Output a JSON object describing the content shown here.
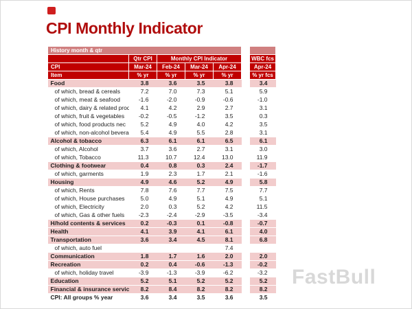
{
  "page": {
    "title": "CPI Monthly Indicator",
    "watermark": "FastBull"
  },
  "colors": {
    "title_red": "#b00d0d",
    "header_dark_red": "#c00000",
    "band_red": "#d08080",
    "category_row_pink": "#f2cccc",
    "watermark_gray": "#d8d8d8",
    "logo_red": "#cf1f1f"
  },
  "chart_data": {
    "type": "table",
    "title": "CPI Monthly Indicator",
    "band_header": "History month & qtr",
    "column_groups": [
      "Qtr CPI",
      "Monthly CPI Indicator",
      "WBC fcs"
    ],
    "row_label_header": {
      "top": "CPI",
      "bottom": "Item"
    },
    "months": [
      "Mar-24",
      "Feb-24",
      "Mar-24",
      "Apr-24"
    ],
    "fcs_month": "Apr-24",
    "units": [
      "% yr",
      "% yr",
      "% yr",
      "% yr"
    ],
    "fcs_unit": "% yr fcs",
    "rows": [
      {
        "label": "Food",
        "style": "category",
        "values": [
          "3.8",
          "3.6",
          "3.5",
          "3.8",
          "3.4"
        ]
      },
      {
        "label": "of which, bread & cereals",
        "style": "sub",
        "values": [
          "7.2",
          "7.0",
          "7.3",
          "5.1",
          "5.9"
        ]
      },
      {
        "label": "of which, meat & seafood",
        "style": "sub",
        "values": [
          "-1.6",
          "-2.0",
          "-0.9",
          "-0.6",
          "-1.0"
        ]
      },
      {
        "label": "of which, dairy & related products",
        "style": "sub",
        "values": [
          "4.1",
          "4.2",
          "2.9",
          "2.7",
          "3.1"
        ]
      },
      {
        "label": "of which, fruit & vegetables",
        "style": "sub",
        "values": [
          "-0.2",
          "-0.5",
          "-1.2",
          "3.5",
          "0.3"
        ]
      },
      {
        "label": "of which, food products nec",
        "style": "sub",
        "values": [
          "5.2",
          "4.9",
          "4.0",
          "4.2",
          "3.5"
        ]
      },
      {
        "label": "of which, non-alcohol beverages",
        "style": "sub",
        "values": [
          "5.4",
          "4.9",
          "5.5",
          "2.8",
          "3.1"
        ]
      },
      {
        "label": "Alcohol & tobacco",
        "style": "category",
        "values": [
          "6.3",
          "6.1",
          "6.1",
          "6.5",
          "6.1"
        ]
      },
      {
        "label": "of which, Alcohol",
        "style": "sub",
        "values": [
          "3.7",
          "3.6",
          "2.7",
          "3.1",
          "3.0"
        ]
      },
      {
        "label": "of which, Tobacco",
        "style": "sub",
        "values": [
          "11.3",
          "10.7",
          "12.4",
          "13.0",
          "11.9"
        ]
      },
      {
        "label": "Clothing & footwear",
        "style": "category",
        "values": [
          "0.4",
          "0.8",
          "0.3",
          "2.4",
          "-1.7"
        ]
      },
      {
        "label": "of which, garments",
        "style": "sub",
        "values": [
          "1.9",
          "2.3",
          "1.7",
          "2.1",
          "-1.6"
        ]
      },
      {
        "label": "Housing",
        "style": "category",
        "values": [
          "4.9",
          "4.6",
          "5.2",
          "4.9",
          "5.8"
        ]
      },
      {
        "label": "of which, Rents",
        "style": "sub",
        "values": [
          "7.8",
          "7.6",
          "7.7",
          "7.5",
          "7.7"
        ]
      },
      {
        "label": "of which, House purchases",
        "style": "sub",
        "values": [
          "5.0",
          "4.9",
          "5.1",
          "4.9",
          "5.1"
        ]
      },
      {
        "label": "of which, Electricity",
        "style": "sub",
        "values": [
          "2.0",
          "0.3",
          "5.2",
          "4.2",
          "11.5"
        ]
      },
      {
        "label": "of which, Gas & other fuels",
        "style": "sub",
        "values": [
          "-2.3",
          "-2.4",
          "-2.9",
          "-3.5",
          "-3.4"
        ]
      },
      {
        "label": "H/hold contents & services",
        "style": "category",
        "values": [
          "0.2",
          "-0.3",
          "0.1",
          "-0.8",
          "-0.7"
        ]
      },
      {
        "label": "Health",
        "style": "category",
        "values": [
          "4.1",
          "3.9",
          "4.1",
          "6.1",
          "4.0"
        ]
      },
      {
        "label": "Transportation",
        "style": "category",
        "values": [
          "3.6",
          "3.4",
          "4.5",
          "8.1",
          "6.8"
        ]
      },
      {
        "label": "of which, auto fuel",
        "style": "sub",
        "values": [
          "",
          "",
          "",
          "7.4",
          ""
        ]
      },
      {
        "label": "Communication",
        "style": "category",
        "values": [
          "1.8",
          "1.7",
          "1.6",
          "2.0",
          "2.0"
        ]
      },
      {
        "label": "Recreation",
        "style": "category",
        "values": [
          "0.2",
          "0.4",
          "-0.6",
          "-1.3",
          "-0.2"
        ]
      },
      {
        "label": "of which, holiday travel",
        "style": "sub",
        "values": [
          "-3.9",
          "-1.3",
          "-3.9",
          "-6.2",
          "-3.2"
        ]
      },
      {
        "label": "Education",
        "style": "category",
        "values": [
          "5.2",
          "5.1",
          "5.2",
          "5.2",
          "5.2"
        ]
      },
      {
        "label": "Financial & insurance services",
        "style": "category",
        "values": [
          "8.2",
          "8.4",
          "8.2",
          "8.2",
          "8.2"
        ]
      },
      {
        "label": "CPI: All groups % year",
        "style": "total",
        "values": [
          "3.6",
          "3.4",
          "3.5",
          "3.6",
          "3.5"
        ]
      }
    ]
  }
}
